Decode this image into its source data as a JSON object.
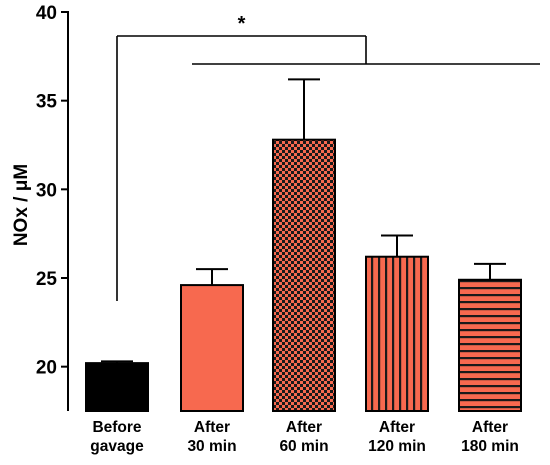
{
  "chart_data": {
    "type": "bar",
    "ylabel": "NOx / μM",
    "ylim": [
      17.5,
      40
    ],
    "yticks": [
      20,
      25,
      30,
      35,
      40
    ],
    "categories": [
      [
        "Before",
        "gavage"
      ],
      [
        "After",
        "30 min"
      ],
      [
        "After",
        "60 min"
      ],
      [
        "After",
        "120 min"
      ],
      [
        "After",
        "180 min"
      ]
    ],
    "values": [
      20.2,
      24.6,
      32.8,
      26.2,
      24.9
    ],
    "errors": [
      0.1,
      0.9,
      3.4,
      1.2,
      0.9
    ],
    "fills": [
      "solid-black",
      "solid-red",
      "checkered",
      "vertical-stripes",
      "horizontal-stripes"
    ],
    "colors": {
      "black": "#000000",
      "red": "#f7694f"
    },
    "significance": {
      "label": "*",
      "left_anchor_category": 0,
      "right_span_categories": [
        1,
        4
      ]
    }
  }
}
